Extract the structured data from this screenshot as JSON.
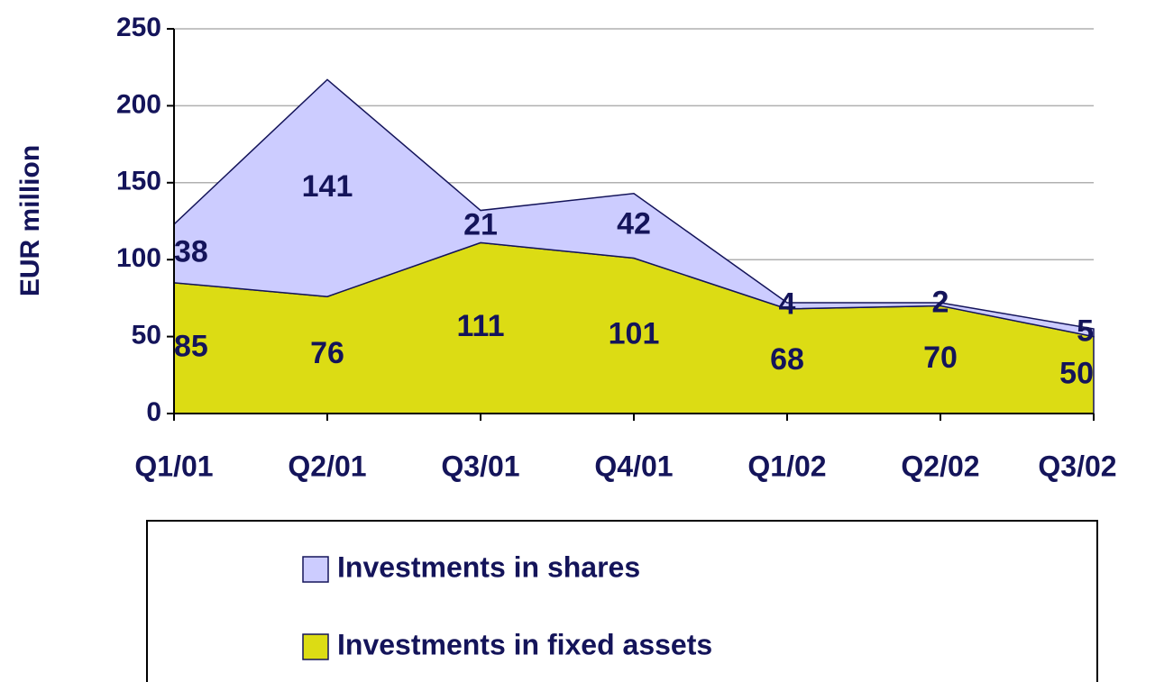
{
  "chart_data": {
    "type": "stacked_area",
    "y_label": "EUR million",
    "categories": [
      "Q1/01",
      "Q2/01",
      "Q3/01",
      "Q4/01",
      "Q1/02",
      "Q2/02",
      "Q3/02"
    ],
    "series": [
      {
        "name": "Investments in fixed assets",
        "color": "#dcdc14",
        "values": [
          85,
          76,
          111,
          101,
          68,
          70,
          50
        ]
      },
      {
        "name": "Investments in shares",
        "color": "#ccccff",
        "values": [
          38,
          141,
          21,
          42,
          4,
          2,
          5
        ]
      }
    ],
    "ylim": [
      0,
      250
    ],
    "yticks": [
      0,
      50,
      100,
      150,
      200,
      250
    ],
    "grid": true,
    "legend": "bottom"
  }
}
